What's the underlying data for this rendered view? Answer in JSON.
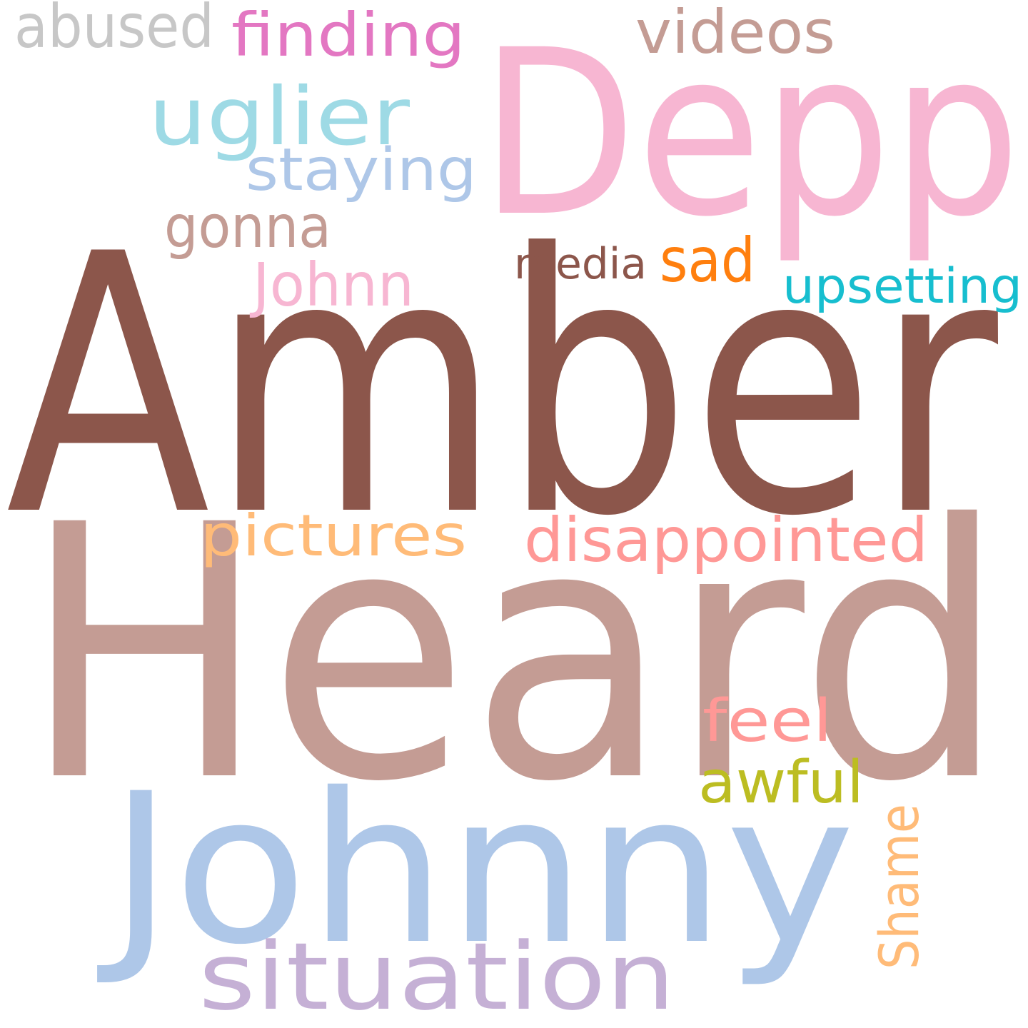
{
  "words": [
    {
      "text": "Amber",
      "color": "#8c564b"
    },
    {
      "text": "Heard",
      "color": "#c49c94"
    },
    {
      "text": "Depp",
      "color": "#f7b6d2"
    },
    {
      "text": "Johnny",
      "color": "#aec7e8"
    },
    {
      "text": "situation",
      "color": "#c5b0d5"
    },
    {
      "text": "uglier",
      "color": "#9edae5"
    },
    {
      "text": "finding",
      "color": "#e377c2"
    },
    {
      "text": "abused",
      "color": "#c7c7c7"
    },
    {
      "text": "videos",
      "color": "#c49c94"
    },
    {
      "text": "staying",
      "color": "#aec7e8"
    },
    {
      "text": "gonna",
      "color": "#c49c94"
    },
    {
      "text": "Johnn",
      "color": "#f7b6d2"
    },
    {
      "text": "media",
      "color": "#8c564b"
    },
    {
      "text": "sad",
      "color": "#ff7f0e"
    },
    {
      "text": "upsetting",
      "color": "#17becf"
    },
    {
      "text": "pictures",
      "color": "#ffbb78"
    },
    {
      "text": "disappointed",
      "color": "#ff9896"
    },
    {
      "text": "feel",
      "color": "#ff9896"
    },
    {
      "text": "awful",
      "color": "#bcbd22"
    },
    {
      "text": "Shame",
      "color": "#ffbb78"
    }
  ]
}
